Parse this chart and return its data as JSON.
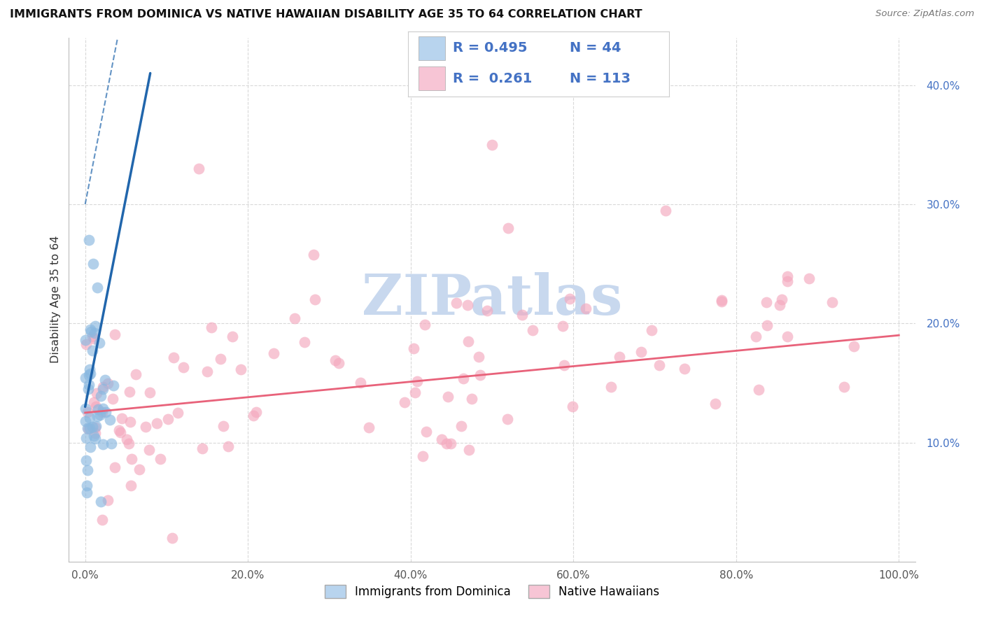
{
  "title": "IMMIGRANTS FROM DOMINICA VS NATIVE HAWAIIAN DISABILITY AGE 35 TO 64 CORRELATION CHART",
  "source": "Source: ZipAtlas.com",
  "ylabel": "Disability Age 35 to 64",
  "blue_label": "Immigrants from Dominica",
  "pink_label": "Native Hawaiians",
  "blue_R": 0.495,
  "blue_N": 44,
  "pink_R": 0.261,
  "pink_N": 113,
  "blue_dot_color": "#89b8e0",
  "pink_dot_color": "#f4a8be",
  "blue_line_color": "#2166ac",
  "pink_line_color": "#e8627a",
  "legend_box_blue": "#b8d4ee",
  "legend_box_pink": "#f7c5d5",
  "text_blue": "#4472c4",
  "xlim": [
    -0.02,
    1.02
  ],
  "ylim": [
    0.0,
    0.44
  ],
  "yticks": [
    0.1,
    0.2,
    0.3,
    0.4
  ],
  "ytick_labels": [
    "10.0%",
    "20.0%",
    "30.0%",
    "40.0%"
  ],
  "xticks": [
    0.0,
    0.2,
    0.4,
    0.6,
    0.8,
    1.0
  ],
  "xtick_labels": [
    "0.0%",
    "20.0%",
    "40.0%",
    "60.0%",
    "80.0%",
    "100.0%"
  ],
  "grid_color": "#d0d0d0",
  "background_color": "#ffffff",
  "watermark_text": "ZIPatlas",
  "watermark_color": "#c8d8ee",
  "blue_seed": 7,
  "pink_seed": 42
}
